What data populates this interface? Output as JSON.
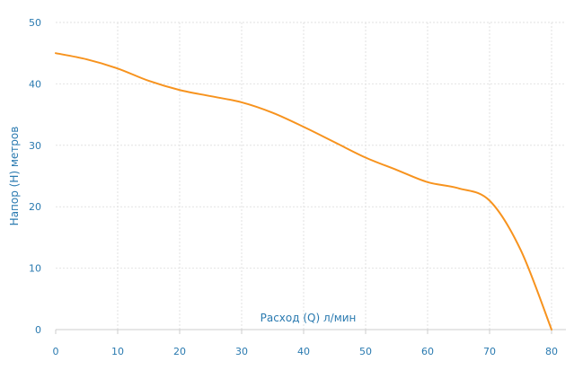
{
  "chart_data": {
    "type": "line",
    "title": "",
    "xlabel": "Расход (Q) л/мин",
    "ylabel": "Напор (H) метров",
    "xlim": [
      0,
      80
    ],
    "ylim": [
      0,
      50
    ],
    "x_ticks": [
      "0",
      "10",
      "20",
      "30",
      "40",
      "50",
      "60",
      "70",
      "80"
    ],
    "y_ticks": [
      "0",
      "10",
      "20",
      "30",
      "40",
      "50"
    ],
    "grid": true,
    "legend": "none",
    "colors": {
      "line": "#f7931e",
      "text": "#2a7ab0",
      "grid": "#e2e2e2",
      "axis": "#cccccc"
    },
    "series": [
      {
        "x": [
          0,
          5,
          10,
          15,
          20,
          25,
          30,
          35,
          40,
          45,
          50,
          55,
          60,
          65,
          70,
          75,
          80
        ],
        "y": [
          45,
          44,
          42.5,
          40.5,
          39,
          38,
          37,
          35.3,
          33,
          30.5,
          28,
          26,
          24,
          23,
          21,
          13,
          0
        ]
      }
    ]
  }
}
